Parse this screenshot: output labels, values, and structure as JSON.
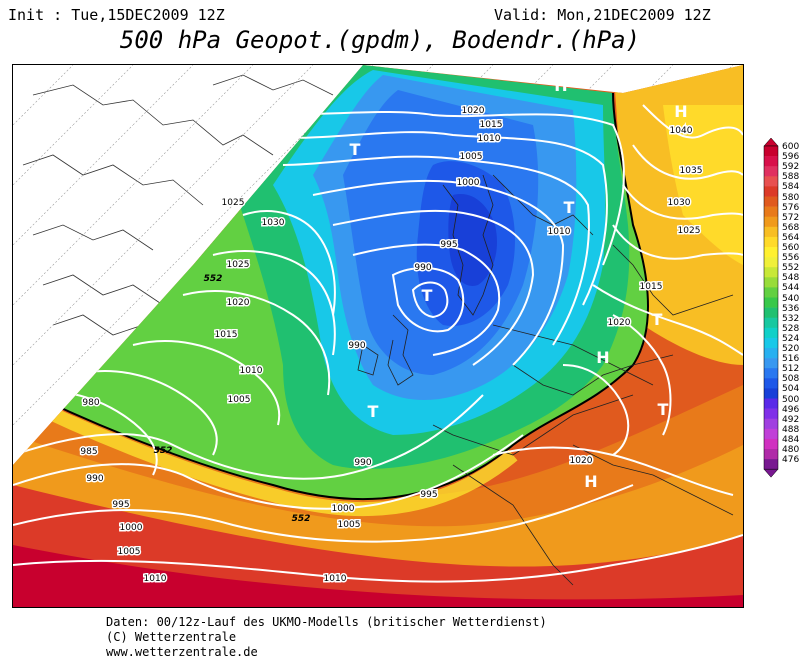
{
  "header": {
    "init": "Init : Tue,15DEC2009 12Z",
    "valid": "Valid: Mon,21DEC2009 12Z",
    "title": "500 hPa Geopot.(gpdm), Bodendr.(hPa)"
  },
  "footer": {
    "line1": "Daten: 00/12z-Lauf des UKMO-Modells (britischer Wetterdienst)",
    "line2": "(C) Wetterzentrale",
    "line3": "www.wetterzentrale.de"
  },
  "legend": {
    "levels": [
      "600",
      "596",
      "592",
      "588",
      "584",
      "580",
      "576",
      "572",
      "568",
      "564",
      "560",
      "556",
      "552",
      "548",
      "544",
      "540",
      "536",
      "532",
      "528",
      "524",
      "520",
      "516",
      "512",
      "508",
      "504",
      "500",
      "496",
      "492",
      "488",
      "484",
      "480",
      "476"
    ],
    "colors": [
      "#c8002e",
      "#d8104a",
      "#e03060",
      "#e85050",
      "#dc3a28",
      "#e05a1e",
      "#e87a1a",
      "#f09a1c",
      "#f8be24",
      "#ffda2a",
      "#fff030",
      "#f0f03a",
      "#c8e838",
      "#98dc3a",
      "#62d042",
      "#38c84a",
      "#20c070",
      "#18c8a0",
      "#10d0c8",
      "#18c8e8",
      "#28b0f0",
      "#3898f0",
      "#2a78f0",
      "#1e58e8",
      "#1840d8",
      "#5a2ae8",
      "#8030e8",
      "#a040e0",
      "#c040d8",
      "#d030c0",
      "#b02aa8",
      "#781890"
    ]
  },
  "map": {
    "pressure_labels": [
      "1020",
      "1015",
      "1010",
      "1005",
      "1000",
      "995",
      "990",
      "985",
      "980",
      "1025",
      "1030",
      "1035",
      "1040"
    ],
    "geopot_label": "552",
    "systems": {
      "high": "H",
      "low": "T"
    },
    "iso_labels": [
      {
        "t": "1020"
      },
      {
        "t": "1015"
      },
      {
        "t": "1010"
      },
      {
        "t": "1005"
      },
      {
        "t": "1000"
      },
      {
        "t": "995"
      },
      {
        "t": "990"
      },
      {
        "t": "1025"
      },
      {
        "t": "1030"
      },
      {
        "t": "1020"
      },
      {
        "t": "1015"
      },
      {
        "t": "1010"
      },
      {
        "t": "1005"
      },
      {
        "t": "980"
      },
      {
        "t": "985"
      },
      {
        "t": "990"
      },
      {
        "t": "995"
      },
      {
        "t": "1000"
      },
      {
        "t": "1005"
      },
      {
        "t": "1010"
      },
      {
        "t": "1015"
      },
      {
        "t": "990"
      },
      {
        "t": "995"
      },
      {
        "t": "1000"
      },
      {
        "t": "1005"
      },
      {
        "t": "1010"
      },
      {
        "t": "1015"
      },
      {
        "t": "1020"
      },
      {
        "t": "1040"
      },
      {
        "t": "1035"
      },
      {
        "t": "1030"
      },
      {
        "t": "1025"
      },
      {
        "t": "1015"
      },
      {
        "t": "1020"
      },
      {
        "t": "1010"
      },
      {
        "t": "1020"
      },
      {
        "t": "990"
      },
      {
        "t": "1025"
      }
    ],
    "geo_labels": [
      {
        "t": "552"
      },
      {
        "t": "552"
      },
      {
        "t": "552"
      }
    ],
    "centers": [
      {
        "t": "H"
      },
      {
        "t": "H"
      },
      {
        "t": "T"
      },
      {
        "t": "T"
      },
      {
        "t": "T"
      },
      {
        "t": "T"
      },
      {
        "t": "H"
      },
      {
        "t": "T"
      },
      {
        "t": "T"
      },
      {
        "t": "H"
      }
    ]
  }
}
